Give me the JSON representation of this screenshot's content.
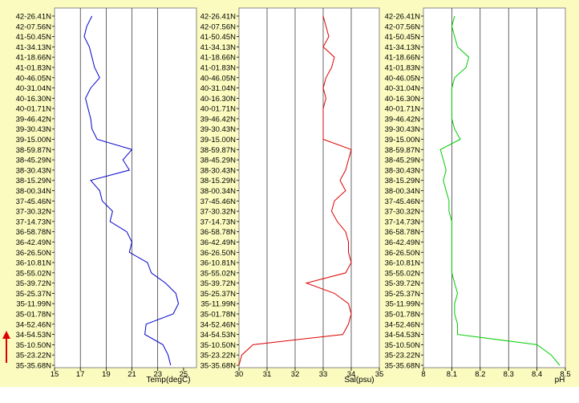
{
  "latitude_labels": [
    "42-26.41N",
    "42-07.56N",
    "41-50.45N",
    "41-34.13N",
    "41-18.66N",
    "41-01.83N",
    "40-46.05N",
    "40-31.04N",
    "40-16.30N",
    "40-01.71N",
    "39-46.42N",
    "39-30.43N",
    "39-15.00N",
    "38-59.87N",
    "38-45.29N",
    "38-30.43N",
    "38-15.29N",
    "38-00.34N",
    "37-45.46N",
    "37-30.32N",
    "37-14.73N",
    "36-58.78N",
    "36-42.49N",
    "36-26.50N",
    "36-10.81N",
    "35-55.02N",
    "35-39.72N",
    "35-25.37N",
    "35-11.99N",
    "35-01.78N",
    "34-52.46N",
    "34-54.53N",
    "35-10.50N",
    "35-23.22N",
    "35-35.68N"
  ],
  "colors": {
    "background": "#fbfbc0",
    "temp": "#0000cc",
    "sal": "#dd0000",
    "ph": "#00cc00",
    "grid": "#000000",
    "arrow": "#dd0000"
  },
  "chart_data": [
    {
      "type": "line",
      "xlabel": "Temp(degC)",
      "xlim": [
        15,
        26
      ],
      "xticks": [
        15,
        17,
        19,
        21,
        23,
        25
      ],
      "series": [
        {
          "values": [
            17.9,
            17.5,
            17.3,
            17.7,
            17.9,
            18.1,
            18.5,
            17.8,
            17.4,
            17.6,
            17.8,
            17.9,
            18.3,
            21.0,
            20.3,
            20.8,
            17.8,
            18.5,
            18.7,
            19.5,
            19.3,
            20.6,
            21.0,
            20.8,
            22.2,
            22.5,
            23.6,
            24.4,
            24.6,
            24.2,
            22.1,
            22.0,
            23.4,
            23.8,
            24.0
          ]
        }
      ]
    },
    {
      "type": "line",
      "xlabel": "Sal(psu)",
      "xlim": [
        30,
        35
      ],
      "xticks": [
        30,
        31,
        32,
        33,
        34,
        35
      ],
      "series": [
        {
          "values": [
            33.0,
            33.1,
            33.2,
            33.0,
            33.4,
            33.3,
            33.1,
            33.0,
            33.1,
            33.0,
            33.0,
            33.0,
            33.0,
            34.0,
            33.9,
            33.8,
            33.6,
            33.8,
            33.4,
            33.3,
            33.5,
            33.8,
            33.9,
            33.9,
            34.0,
            33.8,
            32.4,
            33.4,
            33.9,
            34.0,
            33.9,
            33.7,
            30.5,
            30.1,
            30.0
          ]
        }
      ]
    },
    {
      "type": "line",
      "xlabel": "pH",
      "xlim": [
        8,
        8.5
      ],
      "xticks": [
        8,
        8.1,
        8.2,
        8.3,
        8.4,
        8.5
      ],
      "series": [
        {
          "values": [
            8.11,
            8.1,
            8.11,
            8.12,
            8.16,
            8.15,
            8.11,
            8.1,
            8.1,
            8.1,
            8.1,
            8.11,
            8.13,
            8.06,
            8.07,
            8.08,
            8.07,
            8.08,
            8.09,
            8.09,
            8.1,
            8.1,
            8.1,
            8.1,
            8.1,
            8.1,
            8.11,
            8.12,
            8.11,
            8.11,
            8.12,
            8.12,
            8.4,
            8.45,
            8.48
          ]
        }
      ]
    }
  ]
}
